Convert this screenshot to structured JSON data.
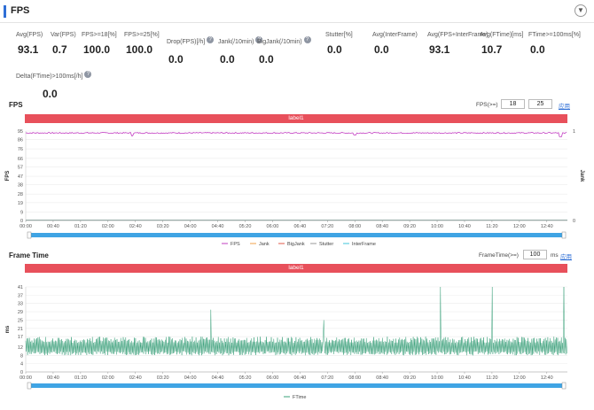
{
  "header": {
    "title": "FPS",
    "collapse_icon": "chevron-down-icon"
  },
  "metrics_row1": [
    {
      "label": "Avg(FPS)",
      "value": "93.1",
      "help": false
    },
    {
      "label": "Var(FPS)",
      "value": "0.7",
      "help": false
    },
    {
      "label": "FPS>=18[%]",
      "value": "100.0",
      "help": false
    },
    {
      "label": "FPS>=25[%]",
      "value": "100.0",
      "help": false
    },
    {
      "label": "Drop(FPS)[/h]",
      "value": "0.0",
      "help": true
    },
    {
      "label": "Jank(/10min)",
      "value": "0.0",
      "help": true
    },
    {
      "label": "BigJank(/10min)",
      "value": "0.0",
      "help": true
    },
    {
      "label": "Stutter[%]",
      "value": "0.0",
      "help": false
    },
    {
      "label": "Avg(InterFrame)",
      "value": "0.0",
      "help": false
    },
    {
      "label": "Avg(FPS+InterFrame)",
      "value": "93.1",
      "help": false
    },
    {
      "label": "Avg(FTime)[ms]",
      "value": "10.7",
      "help": false
    },
    {
      "label": "FTime>=100ms[%]",
      "value": "0.0",
      "help": false
    }
  ],
  "metrics_row2": [
    {
      "label": "Delta(FTime)>100ms[/h]",
      "value": "0.0",
      "help": true
    }
  ],
  "fps_section": {
    "title": "FPS",
    "threshold_label": "FPS(>=)",
    "threshold1": "18",
    "threshold2": "25",
    "apply_link": "应用",
    "label_bar": "label1",
    "y_axis_title": "FPS",
    "y2_axis_title": "Jank",
    "legend": [
      "FPS",
      "Jank",
      "BigJank",
      "Stutter",
      "InterFrame"
    ]
  },
  "frametime_section": {
    "title": "Frame Time",
    "threshold_label": "FrameTime(>=)",
    "threshold": "100",
    "unit": "ms",
    "apply_link": "应用",
    "label_bar": "label1",
    "y_axis_title": "ms",
    "legend": [
      "FTime"
    ]
  },
  "colors": {
    "fps": "#c23fc2",
    "jank": "#f0a04a",
    "bigjank": "#e05a4a",
    "stutter": "#9a9a9a",
    "interframe": "#3fc4d8",
    "ftime": "#3aa07a",
    "label_bar": "#e8505b",
    "slider": "#3fa4e4",
    "accent": "#2f6fd6"
  },
  "chart_data": [
    {
      "type": "line",
      "title": "FPS",
      "ylabel": "FPS",
      "y2label": "Jank",
      "x_ticks": [
        "00:00",
        "00:40",
        "01:20",
        "02:00",
        "02:40",
        "03:20",
        "04:00",
        "04:40",
        "05:20",
        "06:00",
        "06:40",
        "07:20",
        "08:00",
        "08:40",
        "09:20",
        "10:00",
        "10:40",
        "11:20",
        "12:00",
        "12:40"
      ],
      "y_ticks": [
        0,
        9,
        19,
        28,
        38,
        47,
        57,
        66,
        76,
        86,
        95
      ],
      "y2_ticks": [
        0,
        1
      ],
      "ylim": [
        0,
        95
      ],
      "xlim_seconds": [
        0,
        790
      ],
      "series": [
        {
          "name": "FPS",
          "values_approx": 93,
          "dips": [
            [
              155,
              90
            ],
            [
              480,
              91
            ],
            [
              780,
              89
            ]
          ]
        },
        {
          "name": "Jank",
          "values_approx": 0
        },
        {
          "name": "BigJank",
          "values_approx": 0
        },
        {
          "name": "Stutter",
          "values_approx": 0
        },
        {
          "name": "InterFrame",
          "values_approx": 0
        }
      ]
    },
    {
      "type": "line",
      "title": "Frame Time",
      "ylabel": "ms",
      "x_ticks": [
        "00:00",
        "00:40",
        "01:20",
        "02:00",
        "02:40",
        "03:20",
        "04:00",
        "04:40",
        "05:20",
        "06:00",
        "06:40",
        "07:20",
        "08:00",
        "08:40",
        "09:20",
        "10:00",
        "10:40",
        "11:20",
        "12:00",
        "12:40"
      ],
      "y_ticks": [
        0,
        4,
        8,
        12,
        17,
        21,
        25,
        29,
        33,
        37,
        41
      ],
      "ylim": [
        0,
        41
      ],
      "xlim_seconds": [
        0,
        790
      ],
      "series": [
        {
          "name": "FTime",
          "band_low": 8,
          "band_high": 17,
          "spikes": [
            [
              270,
              30
            ],
            [
              435,
              25
            ],
            [
              605,
              41
            ],
            [
              680,
              41
            ],
            [
              785,
              41
            ]
          ]
        }
      ]
    }
  ]
}
